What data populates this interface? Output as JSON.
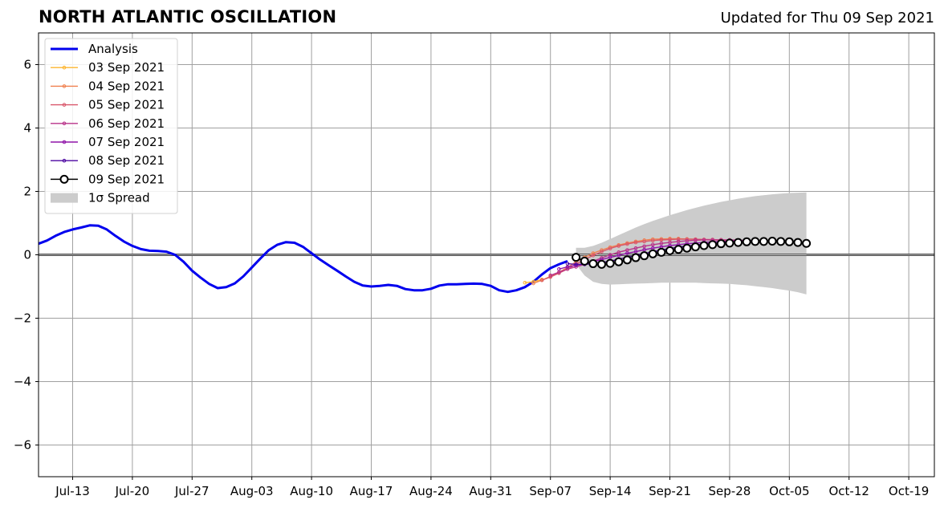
{
  "header": {
    "title": "NORTH ATLANTIC OSCILLATION",
    "updated": "Updated for Thu 09 Sep 2021"
  },
  "chart_data": {
    "type": "line",
    "title": "NORTH ATLANTIC OSCILLATION",
    "subtitle": "Updated for Thu 09 Sep 2021",
    "xlabel": "",
    "ylabel": "",
    "xlim": [
      "2021-07-09",
      "2021-10-22"
    ],
    "ylim": [
      -7,
      7
    ],
    "grid": true,
    "legend_position": "top-left",
    "x_ticks": [
      {
        "date": "2021-07-13",
        "label": "Jul-13"
      },
      {
        "date": "2021-07-20",
        "label": "Jul-20"
      },
      {
        "date": "2021-07-27",
        "label": "Jul-27"
      },
      {
        "date": "2021-08-03",
        "label": "Aug-03"
      },
      {
        "date": "2021-08-10",
        "label": "Aug-10"
      },
      {
        "date": "2021-08-17",
        "label": "Aug-17"
      },
      {
        "date": "2021-08-24",
        "label": "Aug-24"
      },
      {
        "date": "2021-08-31",
        "label": "Aug-31"
      },
      {
        "date": "2021-09-07",
        "label": "Sep-07"
      },
      {
        "date": "2021-09-14",
        "label": "Sep-14"
      },
      {
        "date": "2021-09-21",
        "label": "Sep-21"
      },
      {
        "date": "2021-09-28",
        "label": "Sep-28"
      },
      {
        "date": "2021-10-05",
        "label": "Oct-05"
      },
      {
        "date": "2021-10-12",
        "label": "Oct-12"
      },
      {
        "date": "2021-10-19",
        "label": "Oct-19"
      }
    ],
    "y_ticks": [
      {
        "value": 6,
        "label": "6"
      },
      {
        "value": 4,
        "label": "4"
      },
      {
        "value": 2,
        "label": "2"
      },
      {
        "value": 0,
        "label": "0"
      },
      {
        "value": -2,
        "label": "−2"
      },
      {
        "value": -4,
        "label": "−4"
      },
      {
        "value": -6,
        "label": "−6"
      }
    ],
    "analysis": {
      "name": "Analysis",
      "color": "#0000ee",
      "x": [
        "2021-07-09",
        "2021-07-10",
        "2021-07-11",
        "2021-07-12",
        "2021-07-13",
        "2021-07-14",
        "2021-07-15",
        "2021-07-16",
        "2021-07-17",
        "2021-07-18",
        "2021-07-19",
        "2021-07-20",
        "2021-07-21",
        "2021-07-22",
        "2021-07-23",
        "2021-07-24",
        "2021-07-25",
        "2021-07-26",
        "2021-07-27",
        "2021-07-28",
        "2021-07-29",
        "2021-07-30",
        "2021-07-31",
        "2021-08-01",
        "2021-08-02",
        "2021-08-03",
        "2021-08-04",
        "2021-08-05",
        "2021-08-06",
        "2021-08-07",
        "2021-08-08",
        "2021-08-09",
        "2021-08-10",
        "2021-08-11",
        "2021-08-12",
        "2021-08-13",
        "2021-08-14",
        "2021-08-15",
        "2021-08-16",
        "2021-08-17",
        "2021-08-18",
        "2021-08-19",
        "2021-08-20",
        "2021-08-21",
        "2021-08-22",
        "2021-08-23",
        "2021-08-24",
        "2021-08-25",
        "2021-08-26",
        "2021-08-27",
        "2021-08-28",
        "2021-08-29",
        "2021-08-30",
        "2021-08-31",
        "2021-09-01",
        "2021-09-02",
        "2021-09-03",
        "2021-09-04",
        "2021-09-05",
        "2021-09-06",
        "2021-09-07",
        "2021-09-08",
        "2021-09-09"
      ],
      "y": [
        0.35,
        0.45,
        0.6,
        0.72,
        0.8,
        0.86,
        0.93,
        0.92,
        0.8,
        0.6,
        0.42,
        0.28,
        0.18,
        0.13,
        0.12,
        0.1,
        0.0,
        -0.22,
        -0.5,
        -0.72,
        -0.92,
        -1.05,
        -1.02,
        -0.9,
        -0.68,
        -0.4,
        -0.12,
        0.15,
        0.32,
        0.4,
        0.38,
        0.25,
        0.05,
        -0.15,
        -0.33,
        -0.5,
        -0.68,
        -0.85,
        -0.97,
        -1.0,
        -0.98,
        -0.95,
        -0.98,
        -1.08,
        -1.12,
        -1.12,
        -1.07,
        -0.97,
        -0.93,
        -0.93,
        -0.92,
        -0.91,
        -0.92,
        -0.98,
        -1.12,
        -1.17,
        -1.12,
        -1.02,
        -0.85,
        -0.62,
        -0.42,
        -0.3,
        -0.2
      ]
    },
    "forecasts": [
      {
        "name": "03 Sep 2021",
        "color": "#fdb42f",
        "x": [
          "2021-09-04",
          "2021-09-05",
          "2021-09-06"
        ],
        "y": [
          -0.88,
          -0.85,
          -0.78
        ]
      },
      {
        "name": "04 Sep 2021",
        "color": "#f0804f",
        "x": [
          "2021-09-05",
          "2021-09-06",
          "2021-09-07",
          "2021-09-08",
          "2021-09-09",
          "2021-09-10",
          "2021-09-11",
          "2021-09-12",
          "2021-09-13",
          "2021-09-14",
          "2021-09-15",
          "2021-09-16",
          "2021-09-17",
          "2021-09-18",
          "2021-09-19",
          "2021-09-20",
          "2021-09-21",
          "2021-09-22",
          "2021-09-23",
          "2021-09-24",
          "2021-09-25",
          "2021-09-26",
          "2021-09-27",
          "2021-09-28"
        ],
        "y": [
          -0.9,
          -0.8,
          -0.68,
          -0.55,
          -0.4,
          -0.22,
          -0.08,
          0.05,
          0.15,
          0.24,
          0.31,
          0.37,
          0.42,
          0.46,
          0.49,
          0.5,
          0.51,
          0.51,
          0.5,
          0.49,
          0.48,
          0.47,
          0.46,
          0.45
        ]
      },
      {
        "name": "05 Sep 2021",
        "color": "#d9576b",
        "x": [
          "2021-09-06",
          "2021-09-07",
          "2021-09-08",
          "2021-09-09",
          "2021-09-10",
          "2021-09-11",
          "2021-09-12",
          "2021-09-13",
          "2021-09-14",
          "2021-09-15",
          "2021-09-16",
          "2021-09-17",
          "2021-09-18",
          "2021-09-19",
          "2021-09-20",
          "2021-09-21",
          "2021-09-22",
          "2021-09-23",
          "2021-09-24",
          "2021-09-25",
          "2021-09-26",
          "2021-09-27",
          "2021-09-28",
          "2021-09-29"
        ],
        "y": [
          -0.8,
          -0.7,
          -0.58,
          -0.45,
          -0.3,
          -0.15,
          -0.02,
          0.1,
          0.2,
          0.28,
          0.34,
          0.39,
          0.42,
          0.45,
          0.47,
          0.48,
          0.49,
          0.49,
          0.49,
          0.48,
          0.48,
          0.47,
          0.46,
          0.45
        ]
      },
      {
        "name": "06 Sep 2021",
        "color": "#b83289",
        "x": [
          "2021-09-07",
          "2021-09-08",
          "2021-09-09",
          "2021-09-10",
          "2021-09-11",
          "2021-09-12",
          "2021-09-13",
          "2021-09-14",
          "2021-09-15",
          "2021-09-16",
          "2021-09-17",
          "2021-09-18",
          "2021-09-19",
          "2021-09-20",
          "2021-09-21",
          "2021-09-22",
          "2021-09-23",
          "2021-09-24",
          "2021-09-25",
          "2021-09-26",
          "2021-09-27",
          "2021-09-28",
          "2021-09-29",
          "2021-09-30"
        ],
        "y": [
          -0.65,
          -0.55,
          -0.45,
          -0.38,
          -0.3,
          -0.2,
          -0.1,
          0.0,
          0.08,
          0.15,
          0.21,
          0.27,
          0.32,
          0.36,
          0.39,
          0.42,
          0.44,
          0.46,
          0.47,
          0.47,
          0.47,
          0.47,
          0.46,
          0.45
        ]
      },
      {
        "name": "07 Sep 2021",
        "color": "#8f14a8",
        "x": [
          "2021-09-08",
          "2021-09-09",
          "2021-09-10",
          "2021-09-11",
          "2021-09-12",
          "2021-09-13",
          "2021-09-14",
          "2021-09-15",
          "2021-09-16",
          "2021-09-17",
          "2021-09-18",
          "2021-09-19",
          "2021-09-20",
          "2021-09-21",
          "2021-09-22",
          "2021-09-23",
          "2021-09-24",
          "2021-09-25",
          "2021-09-26",
          "2021-09-27",
          "2021-09-28",
          "2021-09-29",
          "2021-09-30",
          "2021-10-01"
        ],
        "y": [
          -0.45,
          -0.38,
          -0.33,
          -0.28,
          -0.22,
          -0.15,
          -0.08,
          -0.02,
          0.05,
          0.1,
          0.16,
          0.21,
          0.25,
          0.29,
          0.32,
          0.35,
          0.37,
          0.39,
          0.41,
          0.42,
          0.43,
          0.44,
          0.44,
          0.44
        ]
      },
      {
        "name": "08 Sep 2021",
        "color": "#4b06a0",
        "x": [
          "2021-09-09",
          "2021-09-10",
          "2021-09-11",
          "2021-09-12",
          "2021-09-13",
          "2021-09-14",
          "2021-09-15",
          "2021-09-16",
          "2021-09-17",
          "2021-09-18",
          "2021-09-19",
          "2021-09-20",
          "2021-09-21",
          "2021-09-22",
          "2021-09-23",
          "2021-09-24",
          "2021-09-25",
          "2021-09-26",
          "2021-09-27",
          "2021-09-28",
          "2021-09-29",
          "2021-09-30",
          "2021-10-01",
          "2021-10-02"
        ],
        "y": [
          -0.28,
          -0.3,
          -0.3,
          -0.28,
          -0.24,
          -0.2,
          -0.14,
          -0.08,
          -0.02,
          0.04,
          0.1,
          0.15,
          0.2,
          0.24,
          0.28,
          0.31,
          0.34,
          0.36,
          0.38,
          0.4,
          0.41,
          0.42,
          0.43,
          0.43
        ]
      },
      {
        "name": "09 Sep 2021",
        "color": "#000000",
        "marker": "open-circle",
        "x": [
          "2021-09-10",
          "2021-09-11",
          "2021-09-12",
          "2021-09-13",
          "2021-09-14",
          "2021-09-15",
          "2021-09-16",
          "2021-09-17",
          "2021-09-18",
          "2021-09-19",
          "2021-09-20",
          "2021-09-21",
          "2021-09-22",
          "2021-09-23",
          "2021-09-24",
          "2021-09-25",
          "2021-09-26",
          "2021-09-27",
          "2021-09-28",
          "2021-09-29",
          "2021-09-30",
          "2021-10-01",
          "2021-10-02",
          "2021-10-03",
          "2021-10-04",
          "2021-10-05",
          "2021-10-06",
          "2021-10-07"
        ],
        "y": [
          -0.08,
          -0.2,
          -0.28,
          -0.3,
          -0.27,
          -0.22,
          -0.16,
          -0.09,
          -0.03,
          0.03,
          0.08,
          0.13,
          0.17,
          0.21,
          0.25,
          0.29,
          0.32,
          0.35,
          0.37,
          0.39,
          0.41,
          0.42,
          0.42,
          0.43,
          0.42,
          0.41,
          0.39,
          0.36
        ]
      }
    ],
    "spread": {
      "name": "1σ Spread",
      "color": "#cccccc",
      "x": [
        "2021-09-10",
        "2021-09-11",
        "2021-09-12",
        "2021-09-13",
        "2021-09-14",
        "2021-09-15",
        "2021-09-16",
        "2021-09-17",
        "2021-09-18",
        "2021-09-19",
        "2021-09-20",
        "2021-09-21",
        "2021-09-22",
        "2021-09-23",
        "2021-09-24",
        "2021-09-25",
        "2021-09-26",
        "2021-09-27",
        "2021-09-28",
        "2021-09-29",
        "2021-09-30",
        "2021-10-01",
        "2021-10-02",
        "2021-10-03",
        "2021-10-04",
        "2021-10-05",
        "2021-10-06",
        "2021-10-07"
      ],
      "upper": [
        0.22,
        0.22,
        0.28,
        0.38,
        0.5,
        0.62,
        0.74,
        0.86,
        0.97,
        1.07,
        1.16,
        1.25,
        1.33,
        1.41,
        1.48,
        1.55,
        1.61,
        1.67,
        1.72,
        1.77,
        1.81,
        1.85,
        1.88,
        1.91,
        1.93,
        1.95,
        1.96,
        1.97
      ],
      "lower": [
        -0.3,
        -0.65,
        -0.85,
        -0.92,
        -0.94,
        -0.93,
        -0.92,
        -0.91,
        -0.9,
        -0.89,
        -0.88,
        -0.88,
        -0.88,
        -0.88,
        -0.88,
        -0.89,
        -0.9,
        -0.91,
        -0.92,
        -0.94,
        -0.96,
        -0.99,
        -1.02,
        -1.05,
        -1.09,
        -1.13,
        -1.18,
        -1.25
      ]
    },
    "legend": [
      {
        "label": "Analysis",
        "color": "#0000ee",
        "style": "thick-line"
      },
      {
        "label": "03 Sep 2021",
        "color": "#fdb42f",
        "style": "line-dot"
      },
      {
        "label": "04 Sep 2021",
        "color": "#f0804f",
        "style": "line-dot"
      },
      {
        "label": "05 Sep 2021",
        "color": "#d9576b",
        "style": "line-dot"
      },
      {
        "label": "06 Sep 2021",
        "color": "#b83289",
        "style": "line-dot"
      },
      {
        "label": "07 Sep 2021",
        "color": "#8f14a8",
        "style": "line-dot"
      },
      {
        "label": "08 Sep 2021",
        "color": "#4b06a0",
        "style": "line-dot"
      },
      {
        "label": "09 Sep 2021",
        "color": "#000000",
        "style": "line-circle"
      },
      {
        "label": "1σ Spread",
        "color": "#cccccc",
        "style": "patch"
      }
    ]
  }
}
